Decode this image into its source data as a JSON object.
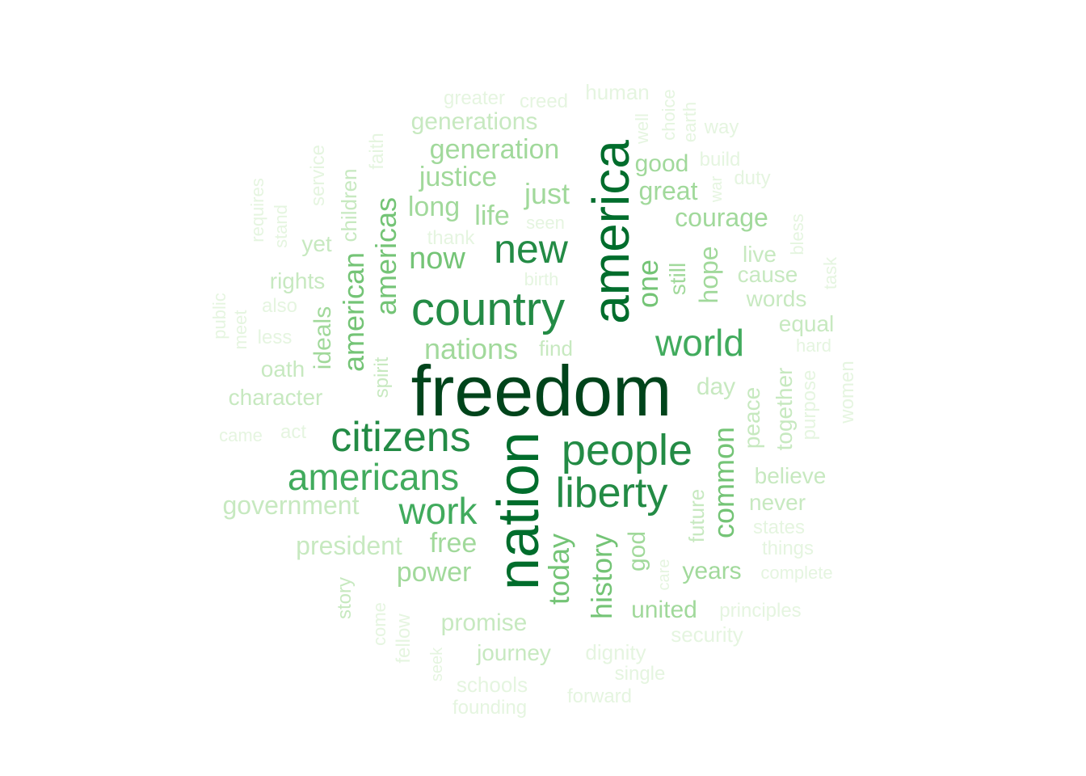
{
  "colors": {
    "background": "#ffffff",
    "levels": [
      "#e5f5e0",
      "#c7e9c0",
      "#a1d99b",
      "#74c476",
      "#41ab5d",
      "#238b45",
      "#006d2c",
      "#00441b"
    ]
  },
  "words": [
    {
      "text": "freedom",
      "weight": 8,
      "rotated": false
    },
    {
      "text": "nation",
      "weight": 7,
      "rotated": true
    },
    {
      "text": "america",
      "weight": 7,
      "rotated": true
    },
    {
      "text": "country",
      "weight": 6,
      "rotated": false
    },
    {
      "text": "people",
      "weight": 6,
      "rotated": false
    },
    {
      "text": "new",
      "weight": 6,
      "rotated": false
    },
    {
      "text": "citizens",
      "weight": 6,
      "rotated": false
    },
    {
      "text": "liberty",
      "weight": 6,
      "rotated": false
    },
    {
      "text": "americans",
      "weight": 5,
      "rotated": false
    },
    {
      "text": "world",
      "weight": 5,
      "rotated": false
    },
    {
      "text": "work",
      "weight": 5,
      "rotated": false
    },
    {
      "text": "one",
      "weight": 4,
      "rotated": true
    },
    {
      "text": "now",
      "weight": 4,
      "rotated": false
    },
    {
      "text": "americas",
      "weight": 4,
      "rotated": true
    },
    {
      "text": "american",
      "weight": 4,
      "rotated": true
    },
    {
      "text": "today",
      "weight": 4,
      "rotated": true
    },
    {
      "text": "history",
      "weight": 4,
      "rotated": true
    },
    {
      "text": "common",
      "weight": 4,
      "rotated": true
    },
    {
      "text": "nations",
      "weight": 3,
      "rotated": false
    },
    {
      "text": "just",
      "weight": 3,
      "rotated": false
    },
    {
      "text": "long",
      "weight": 3,
      "rotated": false
    },
    {
      "text": "life",
      "weight": 3,
      "rotated": false
    },
    {
      "text": "justice",
      "weight": 3,
      "rotated": false
    },
    {
      "text": "generation",
      "weight": 3,
      "rotated": false
    },
    {
      "text": "good",
      "weight": 3,
      "rotated": false
    },
    {
      "text": "great",
      "weight": 3,
      "rotated": false
    },
    {
      "text": "courage",
      "weight": 3,
      "rotated": false
    },
    {
      "text": "hope",
      "weight": 3,
      "rotated": true
    },
    {
      "text": "still",
      "weight": 3,
      "rotated": true
    },
    {
      "text": "ideals",
      "weight": 3,
      "rotated": true
    },
    {
      "text": "power",
      "weight": 3,
      "rotated": false
    },
    {
      "text": "free",
      "weight": 3,
      "rotated": false
    },
    {
      "text": "god",
      "weight": 3,
      "rotated": true
    },
    {
      "text": "united",
      "weight": 3,
      "rotated": false
    },
    {
      "text": "years",
      "weight": 3,
      "rotated": false
    },
    {
      "text": "generations",
      "weight": 2,
      "rotated": false
    },
    {
      "text": "day",
      "weight": 2,
      "rotated": false
    },
    {
      "text": "words",
      "weight": 2,
      "rotated": false
    },
    {
      "text": "cause",
      "weight": 2,
      "rotated": false
    },
    {
      "text": "live",
      "weight": 2,
      "rotated": false
    },
    {
      "text": "equal",
      "weight": 2,
      "rotated": false
    },
    {
      "text": "rights",
      "weight": 2,
      "rotated": false
    },
    {
      "text": "yet",
      "weight": 2,
      "rotated": false
    },
    {
      "text": "oath",
      "weight": 2,
      "rotated": false
    },
    {
      "text": "character",
      "weight": 2,
      "rotated": false
    },
    {
      "text": "government",
      "weight": 2,
      "rotated": false
    },
    {
      "text": "president",
      "weight": 2,
      "rotated": false
    },
    {
      "text": "promise",
      "weight": 2,
      "rotated": false
    },
    {
      "text": "journey",
      "weight": 2,
      "rotated": false
    },
    {
      "text": "believe",
      "weight": 2,
      "rotated": false
    },
    {
      "text": "never",
      "weight": 2,
      "rotated": false
    },
    {
      "text": "together",
      "weight": 2,
      "rotated": true
    },
    {
      "text": "peace",
      "weight": 2,
      "rotated": true
    },
    {
      "text": "find",
      "weight": 2,
      "rotated": false
    },
    {
      "text": "spirit",
      "weight": 2,
      "rotated": true
    },
    {
      "text": "children",
      "weight": 2,
      "rotated": true
    },
    {
      "text": "future",
      "weight": 2,
      "rotated": true
    },
    {
      "text": "story",
      "weight": 2,
      "rotated": true
    },
    {
      "text": "greater",
      "weight": 1,
      "rotated": false
    },
    {
      "text": "creed",
      "weight": 1,
      "rotated": false
    },
    {
      "text": "human",
      "weight": 1,
      "rotated": false
    },
    {
      "text": "way",
      "weight": 1,
      "rotated": false
    },
    {
      "text": "build",
      "weight": 1,
      "rotated": false
    },
    {
      "text": "duty",
      "weight": 1,
      "rotated": false
    },
    {
      "text": "seen",
      "weight": 1,
      "rotated": false
    },
    {
      "text": "thank",
      "weight": 1,
      "rotated": false
    },
    {
      "text": "birth",
      "weight": 1,
      "rotated": false
    },
    {
      "text": "also",
      "weight": 1,
      "rotated": false
    },
    {
      "text": "less",
      "weight": 1,
      "rotated": false
    },
    {
      "text": "came",
      "weight": 1,
      "rotated": false
    },
    {
      "text": "act",
      "weight": 1,
      "rotated": false
    },
    {
      "text": "hard",
      "weight": 1,
      "rotated": false
    },
    {
      "text": "states",
      "weight": 1,
      "rotated": false
    },
    {
      "text": "things",
      "weight": 1,
      "rotated": false
    },
    {
      "text": "complete",
      "weight": 1,
      "rotated": false
    },
    {
      "text": "principles",
      "weight": 1,
      "rotated": false
    },
    {
      "text": "security",
      "weight": 1,
      "rotated": false
    },
    {
      "text": "dignity",
      "weight": 1,
      "rotated": false
    },
    {
      "text": "single",
      "weight": 1,
      "rotated": false
    },
    {
      "text": "forward",
      "weight": 1,
      "rotated": false
    },
    {
      "text": "schools",
      "weight": 1,
      "rotated": false
    },
    {
      "text": "founding",
      "weight": 1,
      "rotated": false
    },
    {
      "text": "choice",
      "weight": 1,
      "rotated": true
    },
    {
      "text": "earth",
      "weight": 1,
      "rotated": true
    },
    {
      "text": "well",
      "weight": 1,
      "rotated": true
    },
    {
      "text": "war",
      "weight": 1,
      "rotated": true
    },
    {
      "text": "service",
      "weight": 1,
      "rotated": true
    },
    {
      "text": "faith",
      "weight": 1,
      "rotated": true
    },
    {
      "text": "requires",
      "weight": 1,
      "rotated": true
    },
    {
      "text": "stand",
      "weight": 1,
      "rotated": true
    },
    {
      "text": "public",
      "weight": 1,
      "rotated": true
    },
    {
      "text": "meet",
      "weight": 1,
      "rotated": true
    },
    {
      "text": "bless",
      "weight": 1,
      "rotated": true
    },
    {
      "text": "task",
      "weight": 1,
      "rotated": true
    },
    {
      "text": "purpose",
      "weight": 1,
      "rotated": true
    },
    {
      "text": "women",
      "weight": 1,
      "rotated": true
    },
    {
      "text": "care",
      "weight": 1,
      "rotated": true
    },
    {
      "text": "come",
      "weight": 1,
      "rotated": true
    },
    {
      "text": "fellow",
      "weight": 1,
      "rotated": true
    },
    {
      "text": "seek",
      "weight": 1,
      "rotated": true
    }
  ]
}
